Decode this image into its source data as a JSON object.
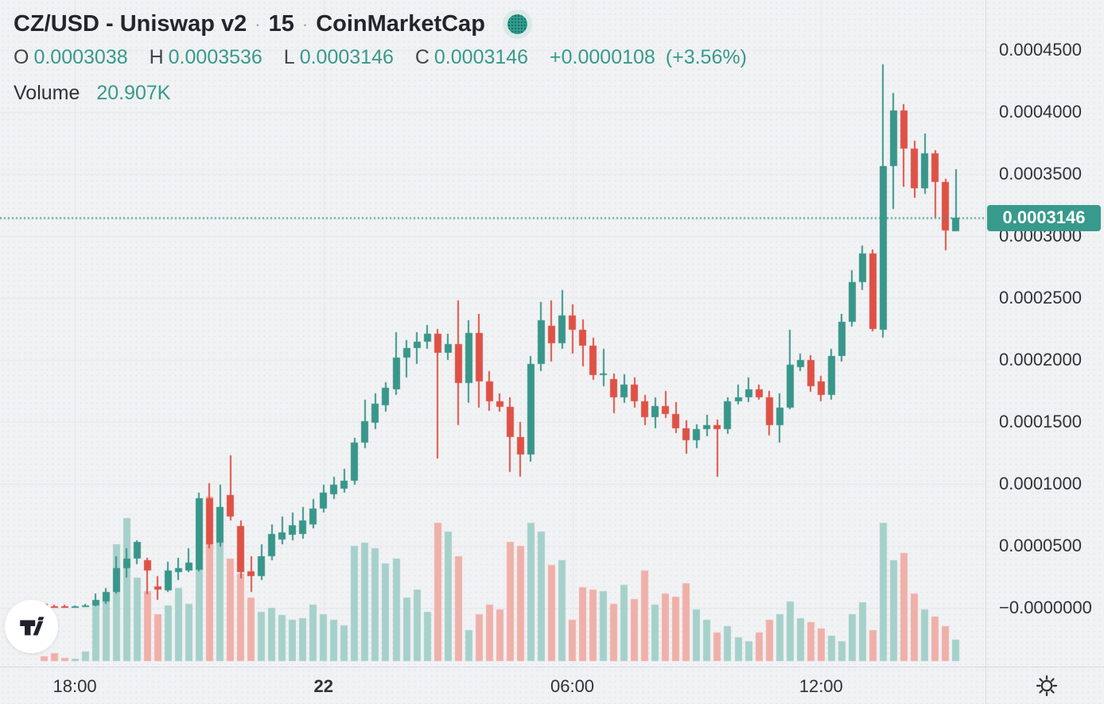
{
  "header": {
    "title": {
      "symbol": "CZ/USD - Uniswap v2",
      "sep1": "·",
      "interval": "15",
      "sep2": "·",
      "source": "CoinMarketCap"
    },
    "ohlc": {
      "o_label": "O",
      "o_value": "0.0003038",
      "h_label": "H",
      "h_value": "0.0003536",
      "l_label": "L",
      "l_value": "0.0003146",
      "c_label": "C",
      "c_value": "0.0003146",
      "change": "+0.0000108",
      "change_pct": "(+3.56%)"
    },
    "volume": {
      "label": "Volume",
      "value": "20.907K"
    }
  },
  "price_axis": {
    "ticks": [
      {
        "label": "0.0004500",
        "value": 4500
      },
      {
        "label": "0.0004000",
        "value": 4000
      },
      {
        "label": "0.0003500",
        "value": 3500
      },
      {
        "label": "0.0003000",
        "value": 3000
      },
      {
        "label": "0.0002500",
        "value": 2500
      },
      {
        "label": "0.0002000",
        "value": 2000
      },
      {
        "label": "0.0001500",
        "value": 1500
      },
      {
        "label": "0.0001000",
        "value": 1000
      },
      {
        "label": "0.0000500",
        "value": 500
      },
      {
        "label": "−0.0000000",
        "value": 0
      }
    ],
    "current_label": "0.0003146",
    "current_value": 3146
  },
  "colors": {
    "up": "#38968a",
    "down": "#de5246",
    "vol_up": "#a6d1cb",
    "vol_down": "#f0b0aa",
    "grid": "#e5e7ea",
    "accent_teal": "#379a8c",
    "text_dark": "#2e3238",
    "axis_border": "#d5d8db",
    "background": "#f1f2f4",
    "chip_text": "#ffffff"
  },
  "icons": {
    "source_status": "dotted-circle-icon",
    "theme_toggle": "sun-icon",
    "logo": "tradingview-logo"
  },
  "chart_data": {
    "type": "candlestick+volume",
    "title": "CZ/USD - Uniswap v2 · 15 · CoinMarketCap",
    "interval": "15m",
    "start_time": "17:15",
    "price_unit_usd": 1e-07,
    "note_units": "candle OHLC values are in units of 0.0000001 USD (multiply by 1e-7); volumes estimated in K tokens",
    "current_price": 3146,
    "time_ticks": [
      {
        "label": "18:00",
        "index": 3,
        "bold": false
      },
      {
        "label": "22",
        "index": 27,
        "bold": true
      },
      {
        "label": "06:00",
        "index": 51,
        "bold": false
      },
      {
        "label": "12:00",
        "index": 75,
        "bold": false
      }
    ],
    "candles": [
      [
        30,
        34,
        8,
        13
      ],
      [
        13,
        28,
        6,
        10
      ],
      [
        10,
        24,
        5,
        8
      ],
      [
        8,
        20,
        4,
        10
      ],
      [
        10,
        35,
        8,
        22
      ],
      [
        22,
        115,
        15,
        64
      ],
      [
        51,
        160,
        32,
        128
      ],
      [
        128,
        417,
        115,
        321
      ],
      [
        321,
        481,
        244,
        397
      ],
      [
        397,
        545,
        353,
        532
      ],
      [
        385,
        404,
        109,
        301
      ],
      [
        173,
        256,
        64,
        147
      ],
      [
        141,
        372,
        128,
        301
      ],
      [
        288,
        404,
        224,
        321
      ],
      [
        301,
        481,
        288,
        365
      ],
      [
        308,
        929,
        295,
        885
      ],
      [
        885,
        1006,
        481,
        513
      ],
      [
        526,
        993,
        494,
        814
      ],
      [
        910,
        1231,
        705,
        737
      ],
      [
        660,
        705,
        237,
        288
      ],
      [
        295,
        417,
        128,
        256
      ],
      [
        256,
        513,
        224,
        417
      ],
      [
        417,
        673,
        385,
        596
      ],
      [
        551,
        737,
        513,
        609
      ],
      [
        590,
        769,
        545,
        667
      ],
      [
        596,
        814,
        558,
        705
      ],
      [
        673,
        878,
        641,
        801
      ],
      [
        801,
        993,
        769,
        929
      ],
      [
        916,
        1058,
        878,
        993
      ],
      [
        962,
        1122,
        929,
        1026
      ],
      [
        1026,
        1370,
        995,
        1333
      ],
      [
        1333,
        1679,
        1288,
        1506
      ],
      [
        1493,
        1730,
        1442,
        1647
      ],
      [
        1634,
        1820,
        1580,
        1776
      ],
      [
        1763,
        2224,
        1717,
        2019
      ],
      [
        2019,
        2160,
        1860,
        2096
      ],
      [
        2096,
        2224,
        1968,
        2147
      ],
      [
        2147,
        2282,
        2090,
        2212
      ],
      [
        2212,
        2250,
        1205,
        2058
      ],
      [
        2058,
        2212,
        2000,
        2128
      ],
      [
        2128,
        2481,
        1474,
        1814
      ],
      [
        1814,
        2321,
        1654,
        2218
      ],
      [
        2218,
        2372,
        1616,
        1827
      ],
      [
        1827,
        1910,
        1590,
        1666
      ],
      [
        1666,
        1730,
        1580,
        1620
      ],
      [
        1620,
        1700,
        1100,
        1378
      ],
      [
        1378,
        1500,
        1058,
        1237
      ],
      [
        1237,
        2032,
        1180,
        1968
      ],
      [
        1968,
        2468,
        1910,
        2321
      ],
      [
        2276,
        2481,
        1987,
        2135
      ],
      [
        2135,
        2564,
        2090,
        2359
      ],
      [
        2359,
        2449,
        2051,
        2244
      ],
      [
        2244,
        2330,
        1955,
        2115
      ],
      [
        2115,
        2180,
        1840,
        1879
      ],
      [
        1879,
        2090,
        1790,
        1891
      ],
      [
        1846,
        1891,
        1570,
        1700
      ],
      [
        1700,
        1884,
        1654,
        1802
      ],
      [
        1802,
        1860,
        1616,
        1667
      ],
      [
        1667,
        1720,
        1474,
        1539
      ],
      [
        1539,
        1700,
        1449,
        1628
      ],
      [
        1628,
        1750,
        1532,
        1563
      ],
      [
        1563,
        1660,
        1410,
        1449
      ],
      [
        1449,
        1510,
        1240,
        1353
      ],
      [
        1353,
        1480,
        1290,
        1442
      ],
      [
        1442,
        1560,
        1390,
        1474
      ],
      [
        1474,
        1520,
        1058,
        1442
      ],
      [
        1442,
        1700,
        1404,
        1666
      ],
      [
        1666,
        1800,
        1640,
        1699
      ],
      [
        1699,
        1859,
        1660,
        1763
      ],
      [
        1763,
        1800,
        1680,
        1700
      ],
      [
        1700,
        1750,
        1390,
        1474
      ],
      [
        1474,
        1730,
        1330,
        1616
      ],
      [
        1616,
        2243,
        1600,
        1962
      ],
      [
        1942,
        2051,
        1910,
        2000
      ],
      [
        2000,
        2040,
        1745,
        1790
      ],
      [
        1827,
        1870,
        1666,
        1718
      ],
      [
        1718,
        2090,
        1680,
        2032
      ],
      [
        2032,
        2372,
        1990,
        2308
      ],
      [
        2308,
        2724,
        2270,
        2628
      ],
      [
        2628,
        2920,
        2560,
        2860
      ],
      [
        2860,
        2890,
        2230,
        2250
      ],
      [
        2244,
        4385,
        2180,
        3564
      ],
      [
        3564,
        4154,
        3220,
        4013
      ],
      [
        4013,
        4064,
        3400,
        3705
      ],
      [
        3705,
        3770,
        3310,
        3385
      ],
      [
        3385,
        3830,
        3340,
        3664
      ],
      [
        3664,
        3690,
        3140,
        3436
      ],
      [
        3436,
        3460,
        2880,
        3045
      ],
      [
        3038,
        3536,
        3146,
        3146
      ]
    ],
    "volumes_k": [
      5,
      8,
      3,
      2,
      9,
      58,
      63,
      114,
      139,
      81,
      68,
      46,
      54,
      71,
      56,
      135,
      160,
      120,
      100,
      85,
      62,
      48,
      52,
      45,
      40,
      42,
      55,
      46,
      40,
      35,
      112,
      115,
      110,
      95,
      100,
      62,
      70,
      48,
      135,
      126,
      102,
      30,
      46,
      55,
      50,
      116,
      112,
      135,
      126,
      94,
      98,
      40,
      72,
      70,
      68,
      56,
      74,
      60,
      88,
      55,
      66,
      63,
      76,
      50,
      40,
      28,
      34,
      23,
      19,
      28,
      40,
      46,
      58,
      42,
      38,
      32,
      25,
      19,
      46,
      57,
      30,
      135,
      98,
      105,
      66,
      50,
      43,
      34,
      21
    ],
    "legend_position": "top-left",
    "grid": true
  }
}
